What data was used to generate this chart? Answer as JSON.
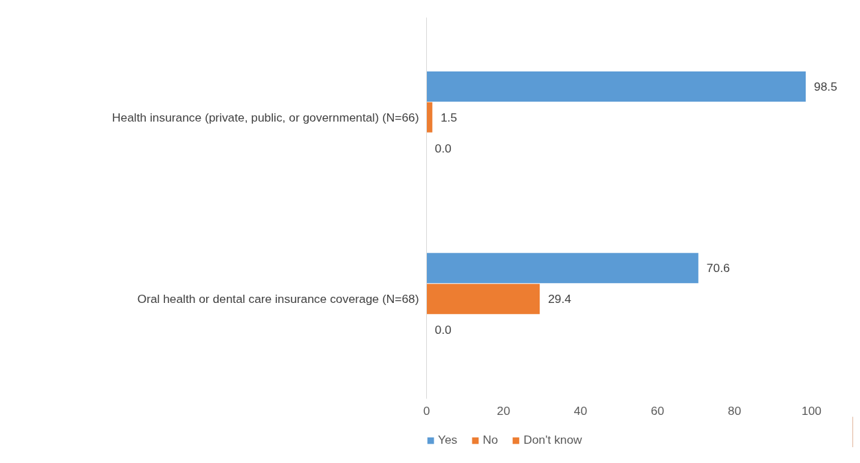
{
  "chart_data": {
    "type": "bar",
    "orientation": "horizontal",
    "categories": [
      "Health insurance (private, public, or governmental) (N=66)",
      "Oral health or dental care insurance coverage (N=68)"
    ],
    "series": [
      {
        "name": "Yes",
        "color": "#5b9bd5",
        "values": [
          98.5,
          70.6
        ]
      },
      {
        "name": "No",
        "color": "#ed7d31",
        "values": [
          1.5,
          29.4
        ]
      },
      {
        "name": "Don't know",
        "color": "#ed7d31",
        "values": [
          0.0,
          0.0
        ]
      }
    ],
    "value_labels": [
      [
        "98.5",
        "70.6"
      ],
      [
        "1.5",
        "29.4"
      ],
      [
        "0.0",
        "0.0"
      ]
    ],
    "xlim": [
      0,
      100
    ],
    "xticks": [
      0,
      20,
      40,
      60,
      80,
      100
    ],
    "grid": false,
    "legend": "bottom"
  }
}
